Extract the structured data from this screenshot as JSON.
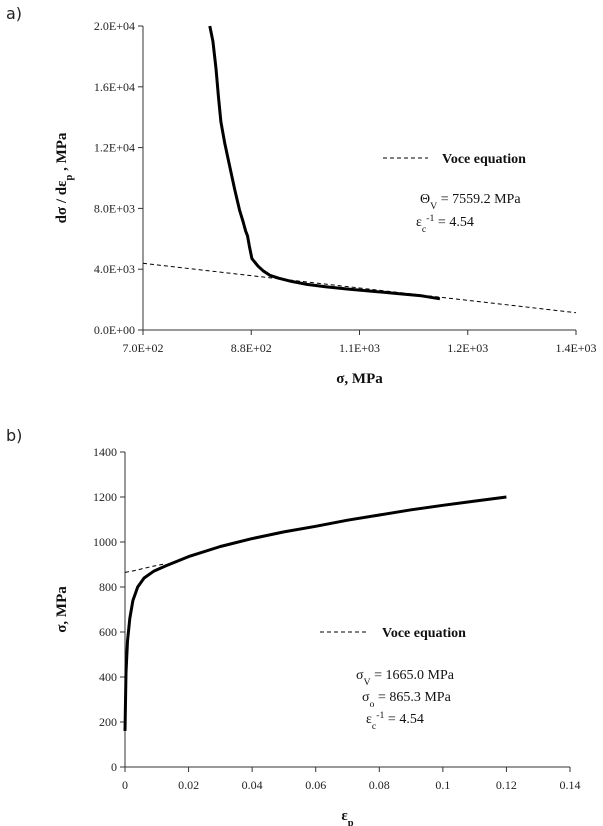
{
  "panels": {
    "a": {
      "label": "a)"
    },
    "b": {
      "label": "b)"
    }
  },
  "chart_data": [
    {
      "id": "a",
      "type": "line",
      "xlabel": "σ, MPa",
      "ylabel": "dσ / dε_p , MPa",
      "xlim": [
        700,
        1400
      ],
      "ylim": [
        0,
        20000
      ],
      "xticks": [
        700,
        875,
        1050,
        1225,
        1400
      ],
      "xtick_labels": [
        "7.0E+02",
        "8.8E+02",
        "1.1E+03",
        "1.2E+03",
        "1.4E+03"
      ],
      "yticks": [
        0,
        4000,
        8000,
        12000,
        16000,
        20000
      ],
      "ytick_labels": [
        "0.0E+00",
        "4.0E+03",
        "8.0E+03",
        "1.2E+04",
        "1.6E+04",
        "2.0E+04"
      ],
      "grid": false,
      "legend_position": "right",
      "series": [
        {
          "style": "solid",
          "x": [
            808,
            813,
            818,
            822,
            826,
            832,
            840,
            848,
            856,
            862,
            866,
            869,
            872,
            876,
            880,
            886,
            894,
            905,
            920,
            940,
            965,
            995,
            1030,
            1070,
            1110,
            1150,
            1180
          ],
          "y": [
            20000,
            19000,
            17200,
            15300,
            13700,
            12300,
            10800,
            9300,
            7900,
            7100,
            6500,
            6200,
            5500,
            4700,
            4500,
            4200,
            3900,
            3600,
            3400,
            3200,
            3000,
            2850,
            2700,
            2550,
            2400,
            2250,
            2050
          ]
        },
        {
          "name": "Voce equation",
          "style": "dashed",
          "x": [
            700,
            1400
          ],
          "y": [
            4390,
            1140
          ]
        }
      ],
      "annotations": {
        "legend": "Voce equation",
        "param1": "Θ_V = 7559.2 MPa",
        "param2": "ε_c^-1 = 4.54"
      }
    },
    {
      "id": "b",
      "type": "line",
      "xlabel": "ε_p",
      "ylabel": "σ, MPa",
      "xlim": [
        0,
        0.14
      ],
      "ylim": [
        0,
        1400
      ],
      "xticks": [
        0,
        0.02,
        0.04,
        0.06,
        0.08,
        0.1,
        0.12,
        0.14
      ],
      "xtick_labels": [
        "0",
        "0.02",
        "0.04",
        "0.06",
        "0.08",
        "0.1",
        "0.12",
        "0.14"
      ],
      "yticks": [
        0,
        200,
        400,
        600,
        800,
        1000,
        1200,
        1400
      ],
      "ytick_labels": [
        "0",
        "200",
        "400",
        "600",
        "800",
        "1000",
        "1200",
        "1400"
      ],
      "grid": false,
      "legend_position": "right",
      "series": [
        {
          "style": "solid",
          "x": [
            0.0,
            0.0003,
            0.0008,
            0.0015,
            0.0025,
            0.004,
            0.006,
            0.009,
            0.013,
            0.02,
            0.03,
            0.04,
            0.05,
            0.06,
            0.07,
            0.08,
            0.09,
            0.1,
            0.11,
            0.12
          ],
          "y": [
            160,
            420,
            560,
            660,
            740,
            800,
            840,
            870,
            895,
            935,
            980,
            1015,
            1045,
            1070,
            1097,
            1120,
            1143,
            1163,
            1182,
            1200
          ]
        },
        {
          "name": "Voce equation",
          "style": "dashed",
          "x": [
            0.0,
            0.003,
            0.006,
            0.009,
            0.012
          ],
          "y": [
            865,
            873,
            883,
            893,
            901
          ]
        }
      ],
      "annotations": {
        "legend": "Voce equation",
        "param1": "σ_V = 1665.0 MPa",
        "param2": "σ_o = 865.3 MPa",
        "param3": "ε_c^-1 = 4.54"
      }
    }
  ]
}
